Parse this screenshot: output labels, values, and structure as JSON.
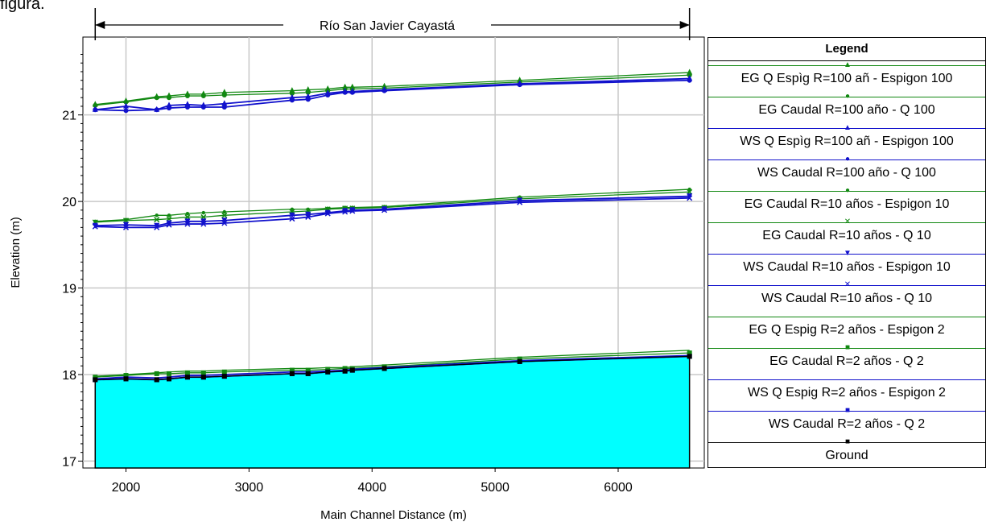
{
  "caption": "figura.",
  "chart_data": {
    "type": "line",
    "title": "Río San Javier Cayastá",
    "xlabel": "Main Channel Distance (m)",
    "ylabel": "Elevation (m)",
    "xlim": [
      1650,
      6700
    ],
    "ylim": [
      16.92,
      21.9
    ],
    "xticks": [
      2000,
      3000,
      4000,
      5000,
      6000
    ],
    "yticks": [
      17,
      18,
      19,
      20,
      21
    ],
    "grid": true,
    "legend_position": "right",
    "legend_title": "Legend",
    "x": [
      1750,
      2000,
      2250,
      2350,
      2500,
      2630,
      2800,
      3350,
      3480,
      3640,
      3780,
      3840,
      4100,
      5200,
      6580
    ],
    "series": [
      {
        "name": "EG  Q Espìg R=100 añ - Espigon 100",
        "color": "#118811",
        "marker": "triangle",
        "values": [
          21.12,
          21.16,
          21.21,
          21.22,
          21.24,
          21.24,
          21.26,
          21.28,
          21.29,
          21.3,
          21.32,
          21.32,
          21.33,
          21.4,
          21.49
        ]
      },
      {
        "name": "EG  Caudal R=100 año - Q 100",
        "color": "#118811",
        "marker": "circle",
        "values": [
          21.11,
          21.15,
          21.2,
          21.2,
          21.22,
          21.22,
          21.23,
          21.25,
          21.26,
          21.28,
          21.3,
          21.3,
          21.31,
          21.38,
          21.46
        ]
      },
      {
        "name": "WS  Q Espìg R=100 añ - Espigon 100",
        "color": "#1111cc",
        "marker": "triangle",
        "values": [
          21.06,
          21.1,
          21.06,
          21.11,
          21.12,
          21.11,
          21.13,
          21.2,
          21.21,
          21.25,
          21.27,
          21.27,
          21.29,
          21.36,
          21.42
        ]
      },
      {
        "name": "WS  Caudal R=100 año - Q 100",
        "color": "#1111cc",
        "marker": "circle",
        "values": [
          21.06,
          21.05,
          21.06,
          21.08,
          21.09,
          21.09,
          21.09,
          21.17,
          21.18,
          21.23,
          21.26,
          21.26,
          21.28,
          21.35,
          21.4
        ]
      },
      {
        "name": "EG  Caudal R=10 años - Espigon 10",
        "color": "#118811",
        "marker": "dot",
        "values": [
          19.77,
          19.79,
          19.84,
          19.84,
          19.86,
          19.87,
          19.88,
          19.91,
          19.91,
          19.92,
          19.93,
          19.93,
          19.94,
          20.05,
          20.14
        ]
      },
      {
        "name": "EG  Caudal R=10 años - Q 10",
        "color": "#118811",
        "marker": "x",
        "values": [
          19.76,
          19.78,
          19.79,
          19.8,
          19.82,
          19.82,
          19.84,
          19.88,
          19.89,
          19.91,
          19.92,
          19.92,
          19.93,
          20.03,
          20.11
        ]
      },
      {
        "name": "WS  Caudal R=10 años - Espigon 10",
        "color": "#1111cc",
        "marker": "triangle-down",
        "values": [
          19.72,
          19.73,
          19.72,
          19.75,
          19.77,
          19.77,
          19.78,
          19.84,
          19.85,
          19.87,
          19.89,
          19.9,
          19.91,
          20.01,
          20.06
        ]
      },
      {
        "name": "WS  Caudal R=10 años - Q 10",
        "color": "#1111cc",
        "marker": "x",
        "values": [
          19.71,
          19.7,
          19.7,
          19.73,
          19.74,
          19.74,
          19.75,
          19.8,
          19.82,
          19.86,
          19.88,
          19.89,
          19.9,
          19.99,
          20.04
        ]
      },
      {
        "name": "EG  Q Espig R=2 años - Espigon 2",
        "color": "#118811",
        "marker": "none",
        "values": [
          17.98,
          18.0,
          18.02,
          18.03,
          18.04,
          18.04,
          18.05,
          18.07,
          18.07,
          18.08,
          18.08,
          18.09,
          18.11,
          18.2,
          18.28
        ]
      },
      {
        "name": "EG  Caudal R=2 años - Q 2",
        "color": "#118811",
        "marker": "square",
        "values": [
          17.97,
          17.99,
          18.01,
          18.01,
          18.02,
          18.02,
          18.03,
          18.05,
          18.05,
          18.06,
          18.07,
          18.07,
          18.09,
          18.18,
          18.25
        ]
      },
      {
        "name": "WS  Q Espig R=2 años - Espigon 2",
        "color": "#1111cc",
        "marker": "none",
        "values": [
          17.95,
          17.97,
          17.96,
          17.97,
          17.99,
          17.99,
          18.0,
          18.03,
          18.03,
          18.04,
          18.05,
          18.06,
          18.08,
          18.16,
          18.22
        ]
      },
      {
        "name": "WS  Caudal R=2 años - Q 2",
        "color": "#1111cc",
        "marker": "square",
        "values": [
          17.94,
          17.95,
          17.94,
          17.95,
          17.97,
          17.97,
          17.98,
          18.01,
          18.01,
          18.03,
          18.04,
          18.05,
          18.07,
          18.15,
          18.21
        ]
      },
      {
        "name": "Ground",
        "color": "#000000",
        "marker": "square",
        "fill": "#00ffff",
        "values": [
          17.94,
          17.95,
          17.94,
          17.95,
          17.97,
          17.97,
          17.98,
          18.01,
          18.01,
          18.03,
          18.04,
          18.05,
          18.07,
          18.15,
          18.21
        ]
      }
    ]
  }
}
